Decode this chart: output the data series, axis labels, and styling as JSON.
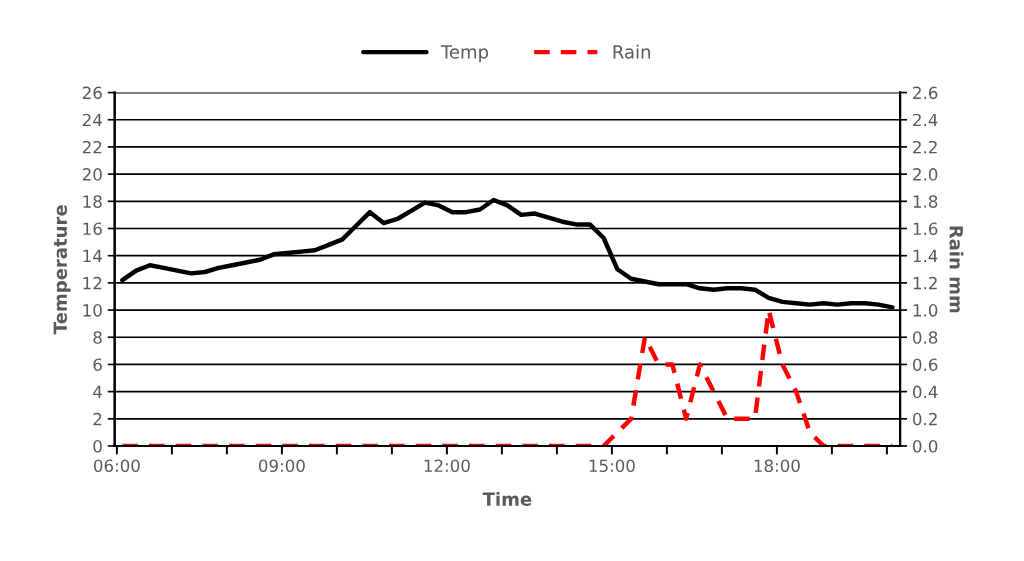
{
  "chart_data": {
    "type": "line",
    "xlabel": "Time",
    "ylabel": "Temperature",
    "y2label": "Rain mm",
    "x": [
      6.1,
      6.35,
      6.6,
      6.85,
      7.1,
      7.35,
      7.6,
      7.85,
      8.1,
      8.35,
      8.6,
      8.85,
      9.1,
      9.35,
      9.6,
      9.85,
      10.1,
      10.35,
      10.6,
      10.85,
      11.1,
      11.35,
      11.6,
      11.85,
      12.1,
      12.35,
      12.6,
      12.85,
      13.1,
      13.35,
      13.6,
      13.85,
      14.1,
      14.35,
      14.6,
      14.85,
      15.1,
      15.35,
      15.6,
      15.85,
      16.1,
      16.35,
      16.6,
      16.85,
      17.1,
      17.35,
      17.6,
      17.85,
      18.1,
      18.35,
      18.6,
      18.85,
      19.1,
      19.35,
      19.6,
      19.85,
      20.1
    ],
    "series": [
      {
        "name": "Temp",
        "color": "#000000",
        "line_style": "solid",
        "values": [
          12.2,
          12.9,
          13.3,
          13.1,
          12.9,
          12.7,
          12.8,
          13.1,
          13.3,
          13.5,
          13.7,
          14.1,
          14.2,
          14.3,
          14.4,
          14.8,
          15.2,
          16.2,
          17.2,
          16.4,
          16.7,
          17.3,
          17.9,
          17.7,
          17.2,
          17.2,
          17.4,
          18.1,
          17.7,
          17.0,
          17.1,
          16.8,
          16.5,
          16.3,
          16.3,
          15.3,
          13.0,
          12.3,
          12.1,
          11.9,
          11.9,
          11.9,
          11.6,
          11.5,
          11.6,
          11.6,
          11.5,
          10.9,
          10.6,
          10.5,
          10.4,
          10.5,
          10.4,
          10.5,
          10.5,
          10.4,
          10.2
        ]
      },
      {
        "name": "Rain",
        "color": "#ff0000",
        "line_style": "dashed",
        "axis": "y2",
        "values": [
          0,
          0,
          0,
          0,
          0,
          0,
          0,
          0,
          0,
          0,
          0,
          0,
          0,
          0,
          0,
          0,
          0,
          0,
          0,
          0,
          0,
          0,
          0,
          0,
          0,
          0,
          0,
          0,
          0,
          0,
          0,
          0,
          0,
          0,
          0,
          0,
          0.1,
          0.2,
          0.8,
          0.6,
          0.6,
          0.2,
          0.6,
          0.4,
          0.2,
          0.2,
          0.2,
          1.0,
          0.6,
          0.4,
          0.1,
          0,
          0,
          0,
          0,
          0,
          0
        ]
      }
    ],
    "xlim": [
      5.96,
      20.24
    ],
    "xticks": [
      {
        "value": 6,
        "label": "06:00"
      },
      {
        "value": 7,
        "label": null
      },
      {
        "value": 8,
        "label": null
      },
      {
        "value": 9,
        "label": "09:00"
      },
      {
        "value": 10,
        "label": null
      },
      {
        "value": 11,
        "label": null
      },
      {
        "value": 12,
        "label": "12:00"
      },
      {
        "value": 13,
        "label": null
      },
      {
        "value": 14,
        "label": null
      },
      {
        "value": 15,
        "label": "15:00"
      },
      {
        "value": 16,
        "label": null
      },
      {
        "value": 17,
        "label": null
      },
      {
        "value": 18,
        "label": "18:00"
      },
      {
        "value": 19,
        "label": null
      },
      {
        "value": 20,
        "label": null
      }
    ],
    "ylim": [
      0,
      26
    ],
    "yticks": [
      0,
      2,
      4,
      6,
      8,
      10,
      12,
      14,
      16,
      18,
      20,
      22,
      24,
      26
    ],
    "y2lim": [
      0,
      2.6
    ],
    "y2ticks": [
      {
        "value": 0,
        "label": "0.0"
      },
      {
        "value": 0.2,
        "label": "0.2"
      },
      {
        "value": 0.4,
        "label": "0.4"
      },
      {
        "value": 0.6,
        "label": "0.6"
      },
      {
        "value": 0.8,
        "label": "0.8"
      },
      {
        "value": 1.0,
        "label": "1.0"
      },
      {
        "value": 1.2,
        "label": "1.2"
      },
      {
        "value": 1.4,
        "label": "1.4"
      },
      {
        "value": 1.6,
        "label": "1.6"
      },
      {
        "value": 1.8,
        "label": "1.8"
      },
      {
        "value": 2.0,
        "label": "2.0"
      },
      {
        "value": 2.2,
        "label": "2.2"
      },
      {
        "value": 2.4,
        "label": "2.4"
      },
      {
        "value": 2.6,
        "label": "2.6"
      }
    ],
    "grid": "y",
    "legend": "top",
    "marker": "none"
  }
}
